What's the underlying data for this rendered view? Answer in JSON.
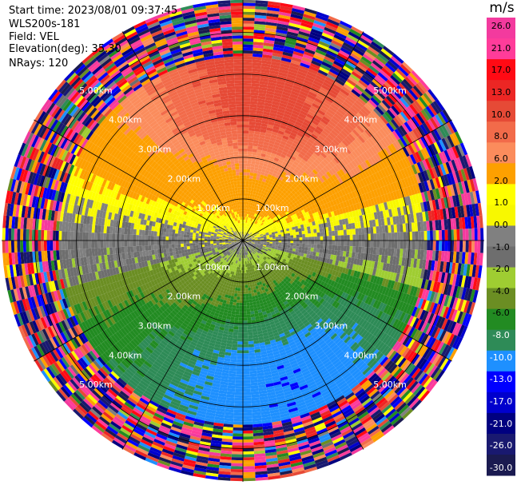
{
  "header": {
    "start_time": "Start time: 2023/08/01 09:37:45",
    "instrument": "WLS200s-181",
    "field": "Field: VEL",
    "elevation": "Elevation(deg): 35.30",
    "nrays": "NRays: 120"
  },
  "chart_data": {
    "type": "heatmap",
    "subtype": "ppi-polar",
    "field": "VEL",
    "units": "m/s",
    "n_rays": 120,
    "elevation_deg": 35.3,
    "range_rings_km": [
      1.0,
      2.0,
      3.0,
      4.0,
      5.0
    ],
    "ring_labels": [
      "1.00km",
      "2.00km",
      "3.00km",
      "4.00km",
      "5.00km"
    ],
    "max_range_km": 5.8,
    "colorbar": {
      "title": "m/s",
      "labels": [
        "26.0",
        "21.0",
        "17.0",
        "13.0",
        "10.0",
        "8.0",
        "6.0",
        "2.0",
        "1.0",
        "0.0",
        "-1.0",
        "-2.0",
        "-4.0",
        "-6.0",
        "-8.0",
        "-10.0",
        "-13.0",
        "-17.0",
        "-21.0",
        "-26.0",
        "-30.0"
      ],
      "bins": [
        {
          "color": "#f33a9e",
          "lo": 26,
          "hi": 30
        },
        {
          "color": "#ff3c9a",
          "lo": 21,
          "hi": 26
        },
        {
          "color": "#ff0a14",
          "lo": 17,
          "hi": 21
        },
        {
          "color": "#ec2624",
          "lo": 13,
          "hi": 17
        },
        {
          "color": "#e64a36",
          "lo": 10,
          "hi": 13
        },
        {
          "color": "#f26b4a",
          "lo": 8,
          "hi": 10
        },
        {
          "color": "#fb8c5c",
          "lo": 6,
          "hi": 8
        },
        {
          "color": "#fda000",
          "lo": 2,
          "hi": 6
        },
        {
          "color": "#ffff00",
          "lo": 1,
          "hi": 2
        },
        {
          "color": "#f8f800",
          "lo": 0.3,
          "hi": 1
        },
        {
          "color": "#808080",
          "lo": -0.3,
          "hi": 0.3
        },
        {
          "color": "#6e6e6e",
          "lo": -1,
          "hi": -0.3
        },
        {
          "color": "#9fcd32",
          "lo": -2,
          "hi": -1
        },
        {
          "color": "#6b8e23",
          "lo": -4,
          "hi": -2
        },
        {
          "color": "#228b22",
          "lo": -6,
          "hi": -4
        },
        {
          "color": "#2e8b57",
          "lo": -8,
          "hi": -6
        },
        {
          "color": "#1e90ff",
          "lo": -10,
          "hi": -8
        },
        {
          "color": "#0000ff",
          "lo": -13,
          "hi": -10
        },
        {
          "color": "#0000cd",
          "lo": -17,
          "hi": -13
        },
        {
          "color": "#000080",
          "lo": -21,
          "hi": -17
        },
        {
          "color": "#191970",
          "lo": -26,
          "hi": -21
        },
        {
          "color": "#1a1a50",
          "lo": -30,
          "hi": -26
        }
      ]
    },
    "velocity_model": {
      "description": "inward/outward radial wind pattern, positive (receding) north, negative (approaching) south, noisy beyond ~4.4 km",
      "peak_positive_ms": 10,
      "peak_negative_ms": -10,
      "noise_start_km": 4.4
    }
  }
}
